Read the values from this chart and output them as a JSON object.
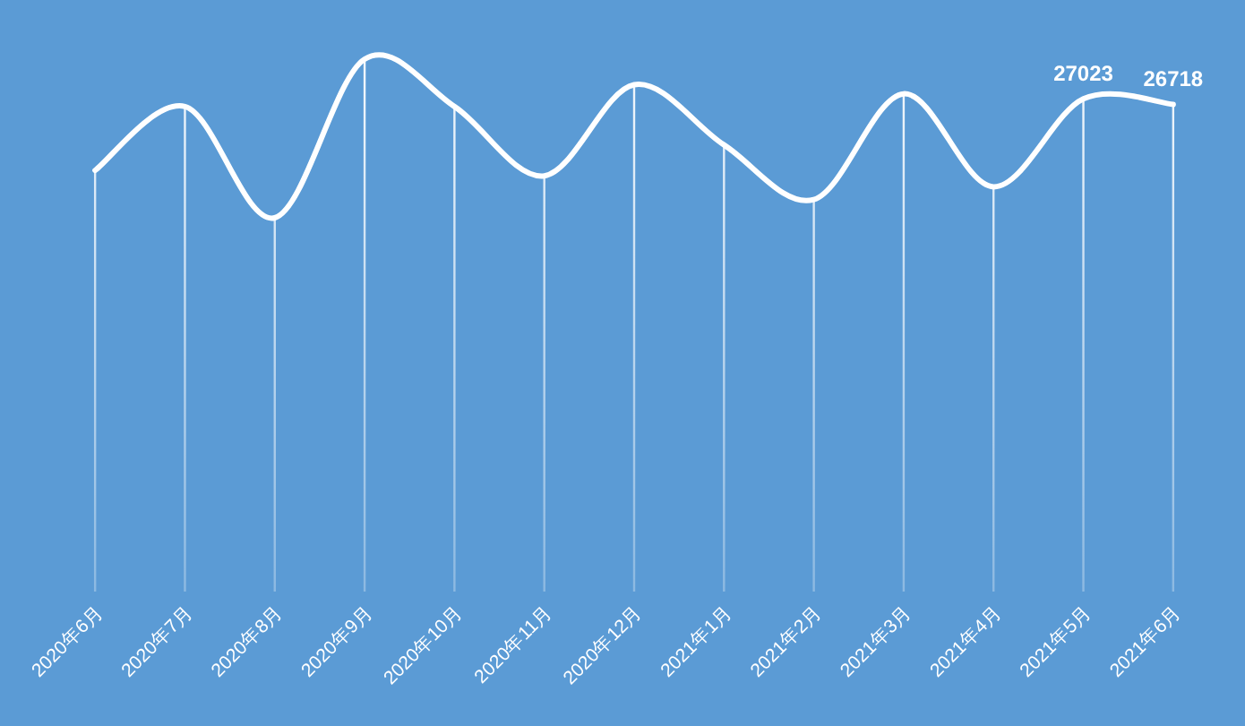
{
  "chart_data": {
    "type": "line",
    "categories": [
      "2020年6月",
      "2020年7月",
      "2020年8月",
      "2020年9月",
      "2020年10月",
      "2020年11月",
      "2020年12月",
      "2021年1月",
      "2021年2月",
      "2021年3月",
      "2021年4月",
      "2021年5月",
      "2021年6月"
    ],
    "series": [
      {
        "color": "#ffffff",
        "values": [
          23100,
          26600,
          20500,
          29200,
          26600,
          22800,
          27800,
          24500,
          21500,
          27300,
          22200,
          27023,
          26718
        ],
        "value_labels": [
          null,
          null,
          null,
          null,
          null,
          null,
          null,
          null,
          null,
          null,
          null,
          "27023",
          "26718"
        ]
      }
    ],
    "tick_labels": "x",
    "grid": "x",
    "line_style": "solid"
  }
}
